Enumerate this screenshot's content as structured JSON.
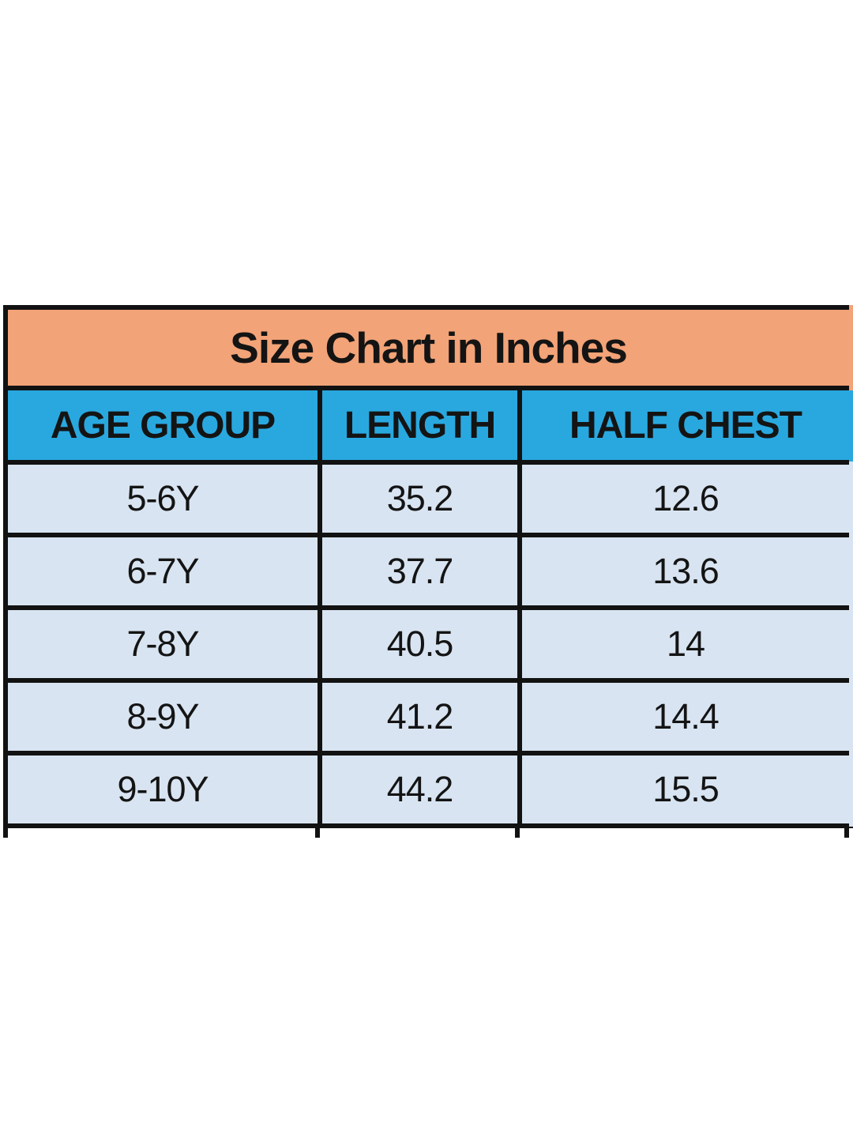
{
  "chart_data": {
    "type": "table",
    "title": "Size Chart in Inches",
    "columns": [
      "AGE GROUP",
      "LENGTH",
      "HALF CHEST"
    ],
    "rows": [
      [
        "5-6Y",
        "35.2",
        "12.6"
      ],
      [
        "6-7Y",
        "37.7",
        "13.6"
      ],
      [
        "7-8Y",
        "40.5",
        "14"
      ],
      [
        "8-9Y",
        "41.2",
        "14.4"
      ],
      [
        "9-10Y",
        "44.2",
        "15.5"
      ]
    ],
    "units": "Inches"
  },
  "colors": {
    "title_bg": "#F2A377",
    "header_bg": "#29A8E0",
    "row_bg": "#D8E4F1",
    "border": "#121212",
    "text": "#141414",
    "page_bg": "#ffffff"
  }
}
